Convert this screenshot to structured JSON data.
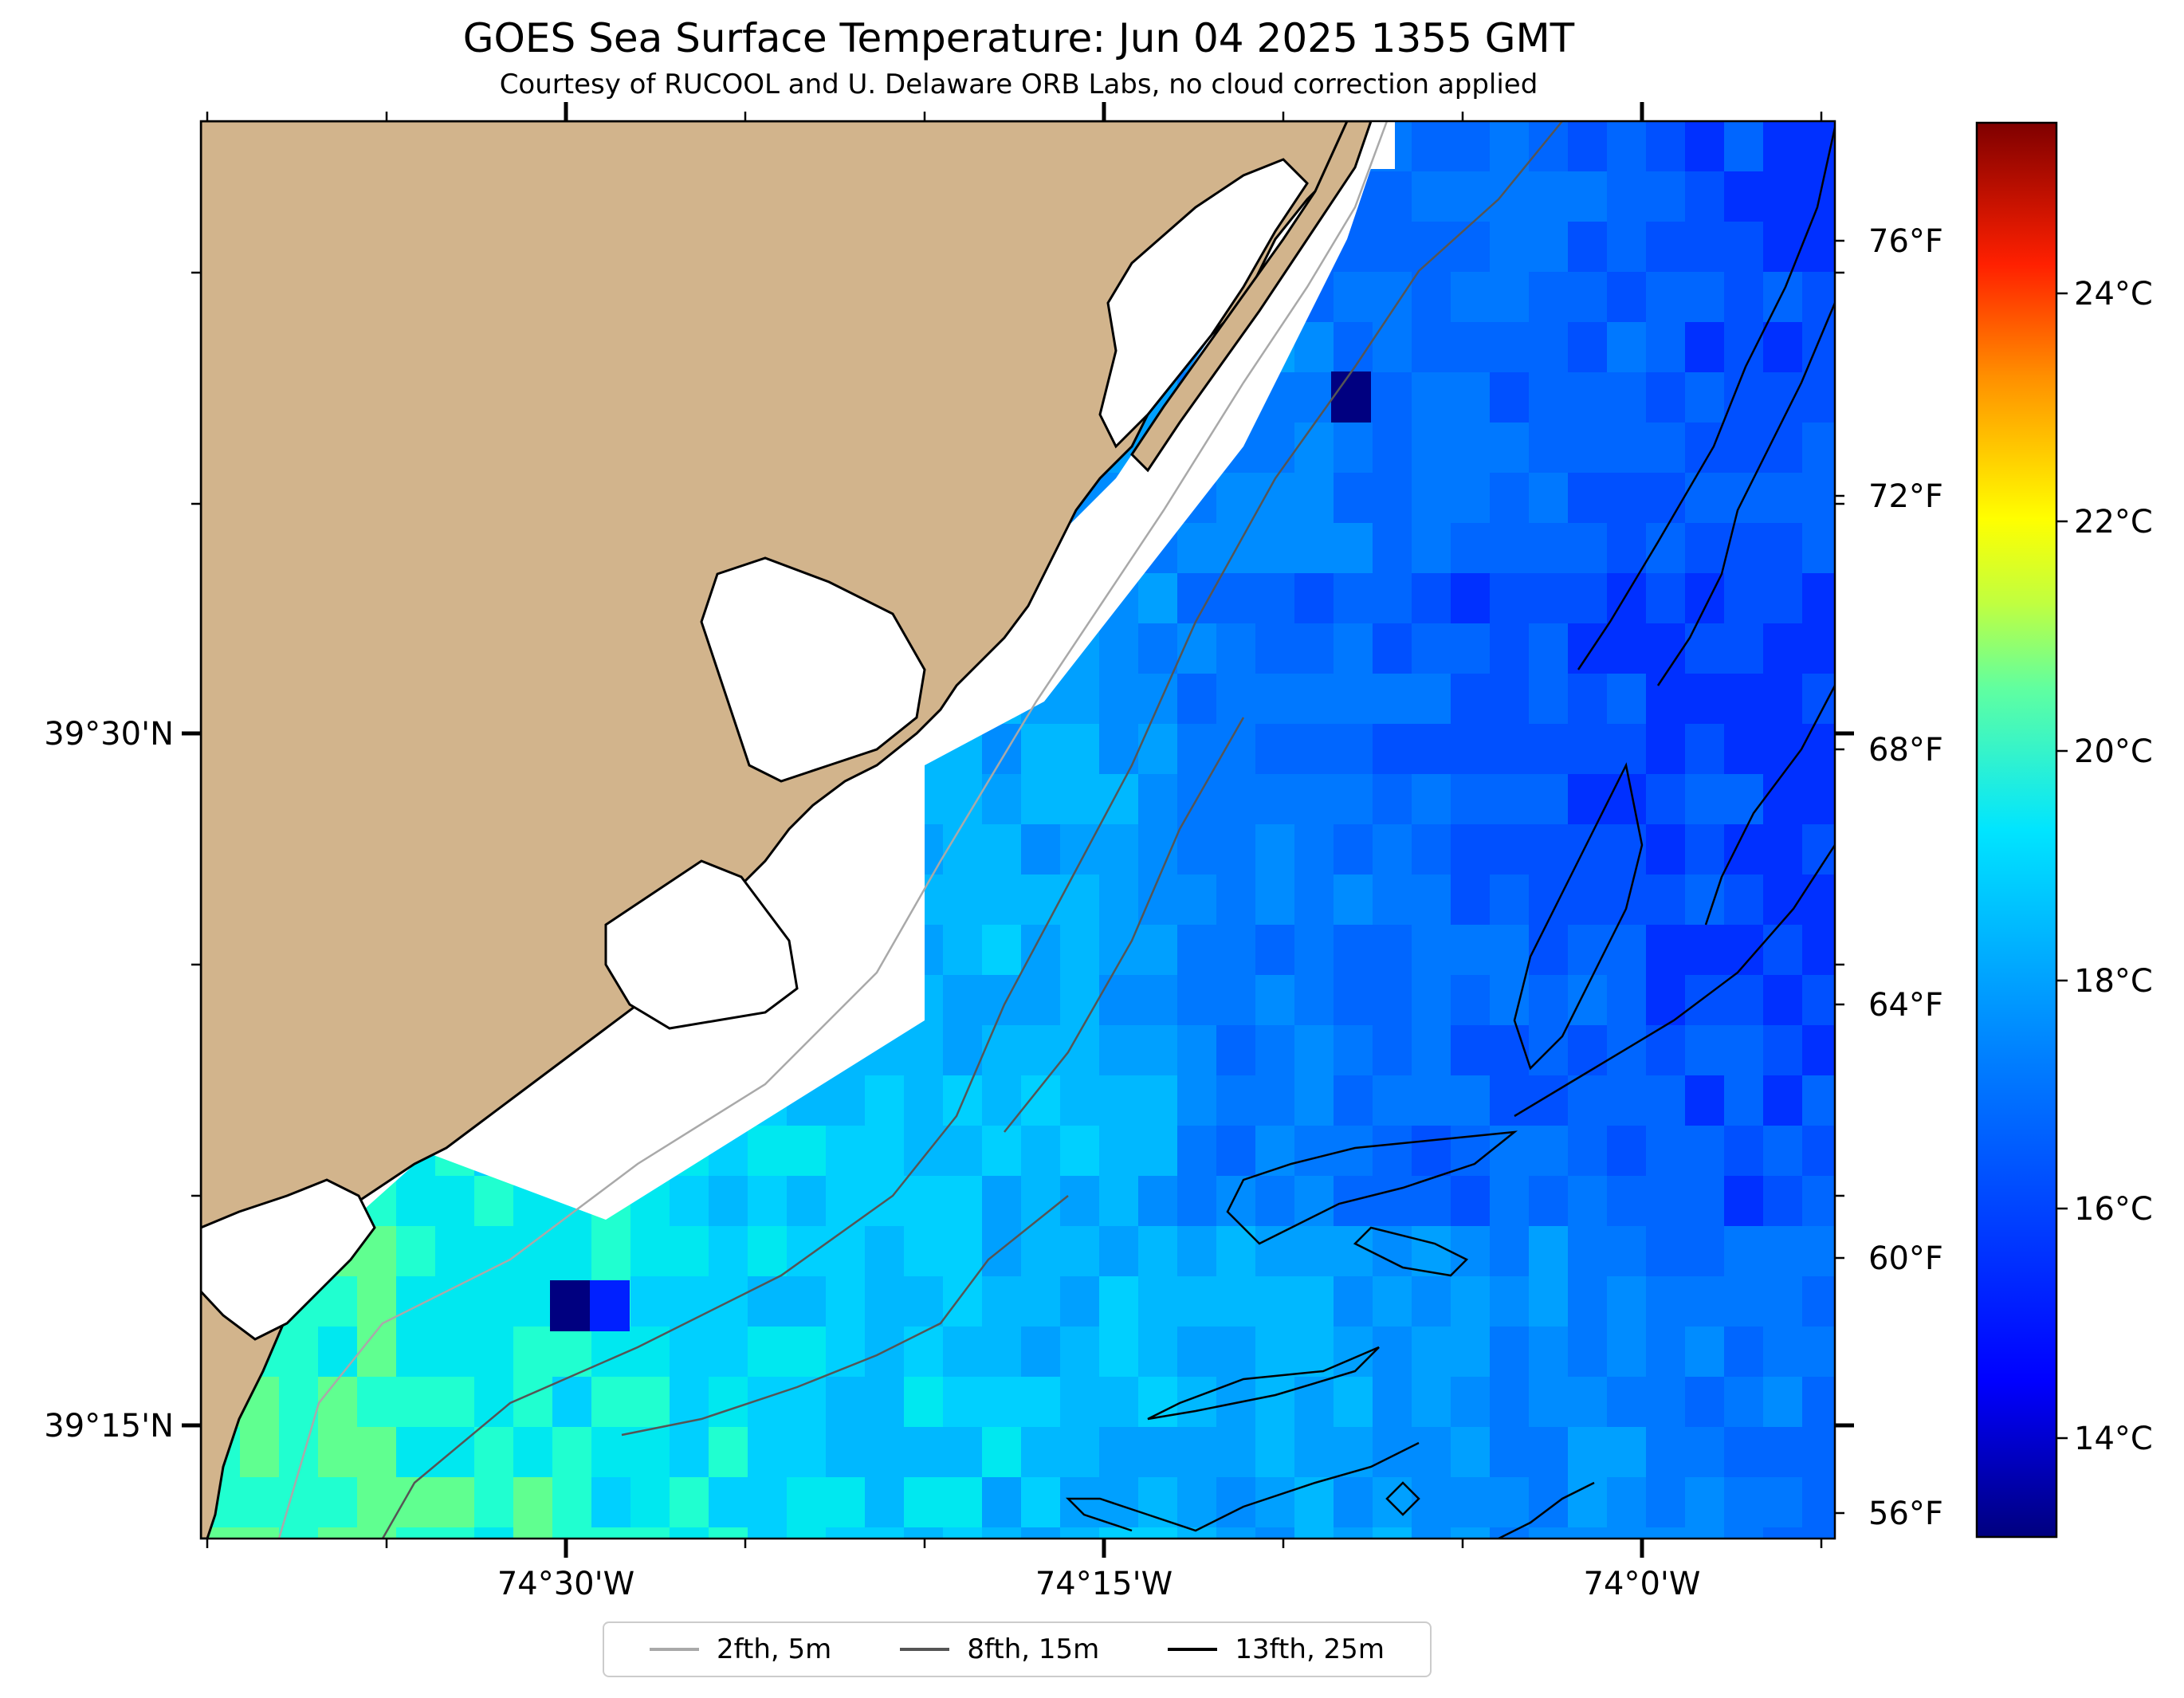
{
  "header": {
    "title": "GOES Sea Surface Temperature: Jun 04 2025 1355 GMT",
    "subtitle": "Courtesy of RUCOOL and U. Delaware ORB Labs, no cloud correction applied"
  },
  "map": {
    "x_ticks": [
      "74°30'W",
      "74°15'W",
      "74°0'W"
    ],
    "y_ticks": [
      "39°30'N",
      "39°15'N"
    ],
    "land_color": "#d2b48c",
    "ocean_blank_color": "#ffffff"
  },
  "colorbar": {
    "celsius_ticks": [
      "24°C",
      "22°C",
      "20°C",
      "18°C",
      "16°C",
      "14°C"
    ],
    "fahrenheit_ticks": [
      "76°F",
      "72°F",
      "68°F",
      "64°F",
      "60°F",
      "56°F"
    ],
    "colors": [
      "#00007f",
      "#0000ff",
      "#0080ff",
      "#00ffff",
      "#80ff80",
      "#ffff00",
      "#ff8000",
      "#ff0000",
      "#7f0000"
    ]
  },
  "legend": {
    "items": [
      {
        "label": "2fth, 5m",
        "color": "#a9a9a9"
      },
      {
        "label": "8fth, 15m",
        "color": "#555555"
      },
      {
        "label": "13fth, 25m",
        "color": "#000000"
      }
    ]
  }
}
